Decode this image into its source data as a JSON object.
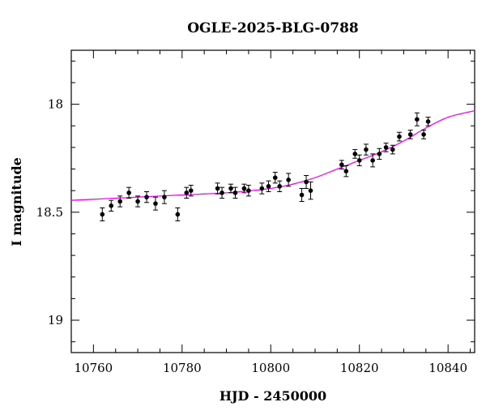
{
  "chart_data": {
    "type": "scatter",
    "title": "OGLE-2025-BLG-0788",
    "xlabel": "HJD - 2450000",
    "ylabel": "I magnitude",
    "xlim": [
      10755,
      10846
    ],
    "ylim": [
      19.15,
      17.75
    ],
    "y_inverted": true,
    "grid": false,
    "x_ticks": [
      10760,
      10780,
      10800,
      10820,
      10840
    ],
    "x_tick_labels": [
      "10760",
      "10780",
      "10800",
      "10820",
      "10840"
    ],
    "y_ticks": [
      18,
      18.5,
      19
    ],
    "y_tick_labels": [
      "18",
      "18.5",
      "19"
    ],
    "colors": {
      "points": "#000000",
      "model": "#ff00ff",
      "frame": "#000000"
    },
    "series": [
      {
        "type": "scatter_errorbars",
        "points": [
          {
            "x": 10762.0,
            "y": 18.51,
            "err": 0.03
          },
          {
            "x": 10764.0,
            "y": 18.47,
            "err": 0.025
          },
          {
            "x": 10766.0,
            "y": 18.45,
            "err": 0.025
          },
          {
            "x": 10768.0,
            "y": 18.41,
            "err": 0.025
          },
          {
            "x": 10770.0,
            "y": 18.45,
            "err": 0.025
          },
          {
            "x": 10772.0,
            "y": 18.43,
            "err": 0.025
          },
          {
            "x": 10774.0,
            "y": 18.46,
            "err": 0.03
          },
          {
            "x": 10776.0,
            "y": 18.43,
            "err": 0.03
          },
          {
            "x": 10779.0,
            "y": 18.51,
            "err": 0.03
          },
          {
            "x": 10781.0,
            "y": 18.41,
            "err": 0.025
          },
          {
            "x": 10782.0,
            "y": 18.4,
            "err": 0.025
          },
          {
            "x": 10788.0,
            "y": 18.39,
            "err": 0.025
          },
          {
            "x": 10789.0,
            "y": 18.41,
            "err": 0.025
          },
          {
            "x": 10791.0,
            "y": 18.39,
            "err": 0.02
          },
          {
            "x": 10792.0,
            "y": 18.41,
            "err": 0.025
          },
          {
            "x": 10794.0,
            "y": 18.39,
            "err": 0.02
          },
          {
            "x": 10795.0,
            "y": 18.4,
            "err": 0.025
          },
          {
            "x": 10798.0,
            "y": 18.39,
            "err": 0.025
          },
          {
            "x": 10799.5,
            "y": 18.38,
            "err": 0.025
          },
          {
            "x": 10801.0,
            "y": 18.34,
            "err": 0.025
          },
          {
            "x": 10802.0,
            "y": 18.38,
            "err": 0.025
          },
          {
            "x": 10804.0,
            "y": 18.35,
            "err": 0.03
          },
          {
            "x": 10807.0,
            "y": 18.42,
            "err": 0.03
          },
          {
            "x": 10808.0,
            "y": 18.36,
            "err": 0.03
          },
          {
            "x": 10809.0,
            "y": 18.4,
            "err": 0.04
          },
          {
            "x": 10816.0,
            "y": 18.28,
            "err": 0.02
          },
          {
            "x": 10817.0,
            "y": 18.31,
            "err": 0.025
          },
          {
            "x": 10819.0,
            "y": 18.23,
            "err": 0.02
          },
          {
            "x": 10820.0,
            "y": 18.26,
            "err": 0.025
          },
          {
            "x": 10821.5,
            "y": 18.21,
            "err": 0.025
          },
          {
            "x": 10823.0,
            "y": 18.26,
            "err": 0.03
          },
          {
            "x": 10824.5,
            "y": 18.23,
            "err": 0.025
          },
          {
            "x": 10826.0,
            "y": 18.2,
            "err": 0.02
          },
          {
            "x": 10827.5,
            "y": 18.21,
            "err": 0.02
          },
          {
            "x": 10829.0,
            "y": 18.15,
            "err": 0.02
          },
          {
            "x": 10831.5,
            "y": 18.14,
            "err": 0.02
          },
          {
            "x": 10833.0,
            "y": 18.07,
            "err": 0.03
          },
          {
            "x": 10834.5,
            "y": 18.14,
            "err": 0.02
          },
          {
            "x": 10835.5,
            "y": 18.08,
            "err": 0.02
          }
        ]
      },
      {
        "type": "model_curve",
        "points": [
          {
            "x": 10755,
            "y": 18.445
          },
          {
            "x": 10760,
            "y": 18.44
          },
          {
            "x": 10770,
            "y": 18.43
          },
          {
            "x": 10780,
            "y": 18.42
          },
          {
            "x": 10790,
            "y": 18.41
          },
          {
            "x": 10800,
            "y": 18.39
          },
          {
            "x": 10805,
            "y": 18.37
          },
          {
            "x": 10810,
            "y": 18.34
          },
          {
            "x": 10815,
            "y": 18.3
          },
          {
            "x": 10820,
            "y": 18.26
          },
          {
            "x": 10825,
            "y": 18.22
          },
          {
            "x": 10830,
            "y": 18.17
          },
          {
            "x": 10835,
            "y": 18.11
          },
          {
            "x": 10840,
            "y": 18.06
          },
          {
            "x": 10846,
            "y": 18.03
          }
        ]
      }
    ]
  }
}
